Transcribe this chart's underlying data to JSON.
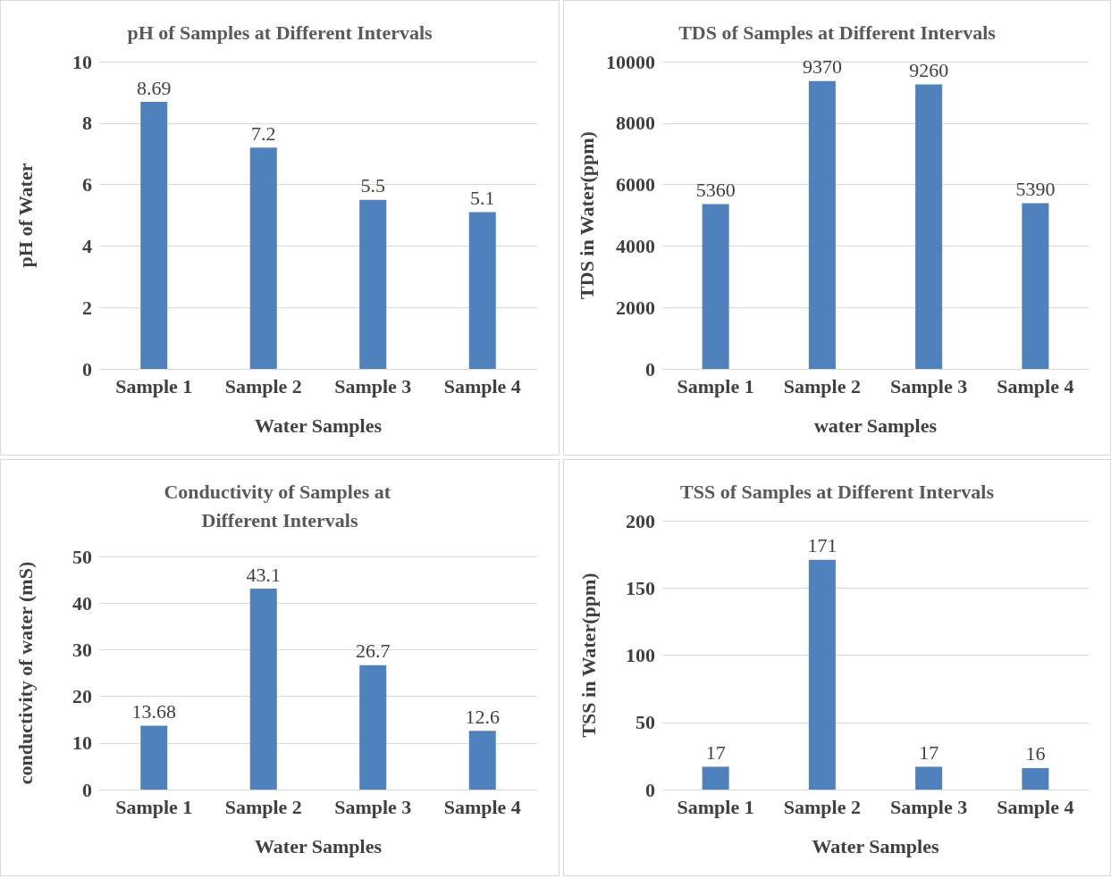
{
  "chart_data": [
    {
      "type": "bar",
      "title": "pH of Samples at Different Intervals",
      "xlabel": "Water Samples",
      "ylabel": "pH of Water",
      "categories": [
        "Sample 1",
        "Sample 2",
        "Sample 3",
        "Sample 4"
      ],
      "values": [
        8.69,
        7.2,
        5.5,
        5.1
      ],
      "color": "#4f81bd",
      "ylim": [
        0,
        10
      ],
      "yticks": [
        0,
        2,
        4,
        6,
        8,
        10
      ],
      "grid": "y",
      "data_labels": true
    },
    {
      "type": "bar",
      "title": "TDS of Samples at Different Intervals",
      "xlabel": "water Samples",
      "ylabel": "TDS in Water(ppm)",
      "categories": [
        "Sample 1",
        "Sample 2",
        "Sample 3",
        "Sample 4"
      ],
      "values": [
        5360,
        9370,
        9260,
        5390
      ],
      "color": "#4f81bd",
      "ylim": [
        0,
        10000
      ],
      "yticks": [
        0,
        2000,
        4000,
        6000,
        8000,
        10000
      ],
      "grid": "y",
      "data_labels": true
    },
    {
      "type": "bar",
      "title": "Conductivity of Samples at Different Intervals",
      "xlabel": "Water Samples",
      "ylabel": "conductivity of water (mS)",
      "categories": [
        "Sample 1",
        "Sample 2",
        "Sample 3",
        "Sample 4"
      ],
      "values": [
        13.68,
        43.1,
        26.7,
        12.6
      ],
      "color": "#4f81bd",
      "ylim": [
        0,
        50
      ],
      "yticks": [
        0,
        10,
        20,
        30,
        40,
        50
      ],
      "grid": "y",
      "data_labels": true
    },
    {
      "type": "bar",
      "title": "TSS of Samples at Different Intervals",
      "xlabel": "Water Samples",
      "ylabel": "TSS in Water(ppm)",
      "categories": [
        "Sample 1",
        "Sample 2",
        "Sample 3",
        "Sample 4"
      ],
      "values": [
        17,
        171,
        17,
        16
      ],
      "color": "#4f81bd",
      "ylim": [
        0,
        200
      ],
      "yticks": [
        0,
        50,
        100,
        150,
        200
      ],
      "grid": "y",
      "data_labels": true
    }
  ]
}
